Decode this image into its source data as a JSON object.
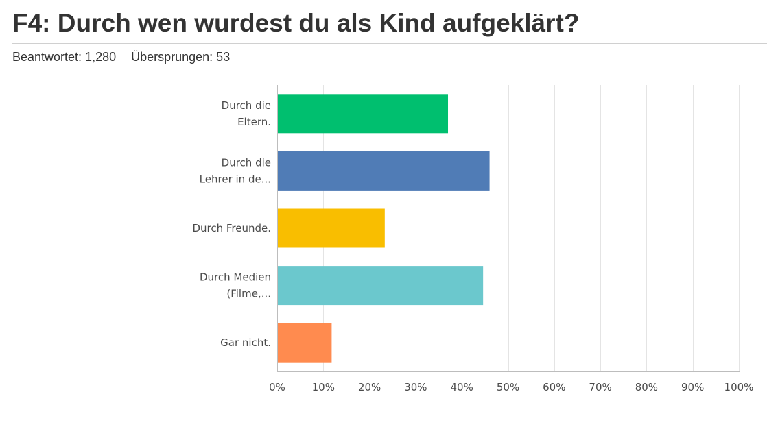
{
  "header": {
    "title": "F4: Durch wen wurdest du als Kind aufgeklärt?",
    "answered_label": "Beantwortet: 1,280",
    "skipped_label": "Übersprungen: 53"
  },
  "chart_data": {
    "type": "bar",
    "orientation": "horizontal",
    "categories": [
      [
        "Durch die",
        "Eltern."
      ],
      [
        "Durch die",
        "Lehrer in de..."
      ],
      [
        "Durch Freunde."
      ],
      [
        "Durch Medien",
        "(Filme,..."
      ],
      [
        "Gar nicht."
      ]
    ],
    "values": [
      37,
      46,
      23.3,
      44.6,
      11.8
    ],
    "value_unit": "%",
    "colors": [
      "#00bf6f",
      "#507cb6",
      "#f9be00",
      "#6bc8cd",
      "#ff8b4f"
    ],
    "xlim": [
      0,
      100
    ],
    "xticks": [
      "0%",
      "10%",
      "20%",
      "30%",
      "40%",
      "50%",
      "60%",
      "70%",
      "80%",
      "90%",
      "100%"
    ],
    "grid": true,
    "legend": false,
    "title": "",
    "xlabel": "",
    "ylabel": ""
  }
}
